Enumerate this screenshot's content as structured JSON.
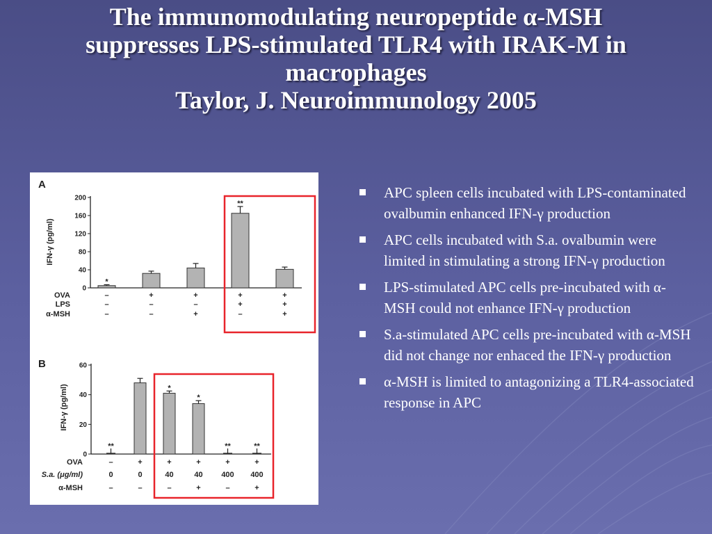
{
  "slide": {
    "title_line1": "The immunomodulating neuropeptide α-MSH",
    "title_line2": "suppresses LPS-stimulated TLR4 with IRAK-M in",
    "title_line3": "macrophages",
    "title_line4": "Taylor, J. Neuroimmunology 2005",
    "bullets": [
      "APC spleen cells incubated with LPS-contaminated ovalbumin enhanced IFN-γ production",
      "APC cells incubated with S.a. ovalbumin were limited in stimulating a strong IFN-γ production",
      "LPS-stimulated APC cells pre-incubated with α-MSH could not enhance IFN-γ production",
      "S.a-stimulated APC cells pre-incubated with α-MSH did not change nor enhaced the IFN-γ production",
      "α-MSH is limited to antagonizing a TLR4-associated response in APC"
    ],
    "highlight_color": "#e8242b",
    "bar_color": "#b3b3b3"
  },
  "chart_data": [
    {
      "type": "bar",
      "panel": "A",
      "ylabel": "IFN-γ  (pg/ml)",
      "ylim": [
        0,
        200
      ],
      "yticks": [
        "0",
        "40",
        "80",
        "120",
        "160",
        "200"
      ],
      "values": [
        5,
        32,
        44,
        165,
        41
      ],
      "errors": [
        2,
        5,
        10,
        15,
        5
      ],
      "significance": [
        "*",
        "",
        "",
        "**",
        ""
      ],
      "condition_rows": [
        {
          "label": "OVA",
          "values": [
            "–",
            "+",
            "+",
            "+",
            "+"
          ]
        },
        {
          "label": "LPS",
          "values": [
            "–",
            "–",
            "–",
            "+",
            "+"
          ]
        },
        {
          "label": "α-MSH",
          "values": [
            "–",
            "–",
            "+",
            "–",
            "+"
          ]
        }
      ],
      "highlight_bars": [
        3,
        4
      ]
    },
    {
      "type": "bar",
      "panel": "B",
      "ylabel": "IFN-γ  (pg/ml)",
      "ylim": [
        0,
        60
      ],
      "yticks": [
        "0",
        "20",
        "40",
        "60"
      ],
      "values": [
        0,
        48,
        41,
        34,
        0,
        0
      ],
      "errors": [
        0,
        3,
        1.5,
        2,
        0,
        0
      ],
      "significance": [
        "**",
        "",
        "*",
        "*",
        "**",
        "**"
      ],
      "condition_rows": [
        {
          "label": "OVA",
          "values": [
            "–",
            "+",
            "+",
            "+",
            "+",
            "+"
          ]
        },
        {
          "label": "S.a. (μg/ml)",
          "values": [
            "0",
            "0",
            "40",
            "40",
            "400",
            "400"
          ]
        },
        {
          "label": "α-MSH",
          "values": [
            "–",
            "–",
            "–",
            "+",
            "–",
            "+"
          ]
        }
      ],
      "highlight_bars": [
        2,
        3,
        4,
        5
      ]
    }
  ]
}
